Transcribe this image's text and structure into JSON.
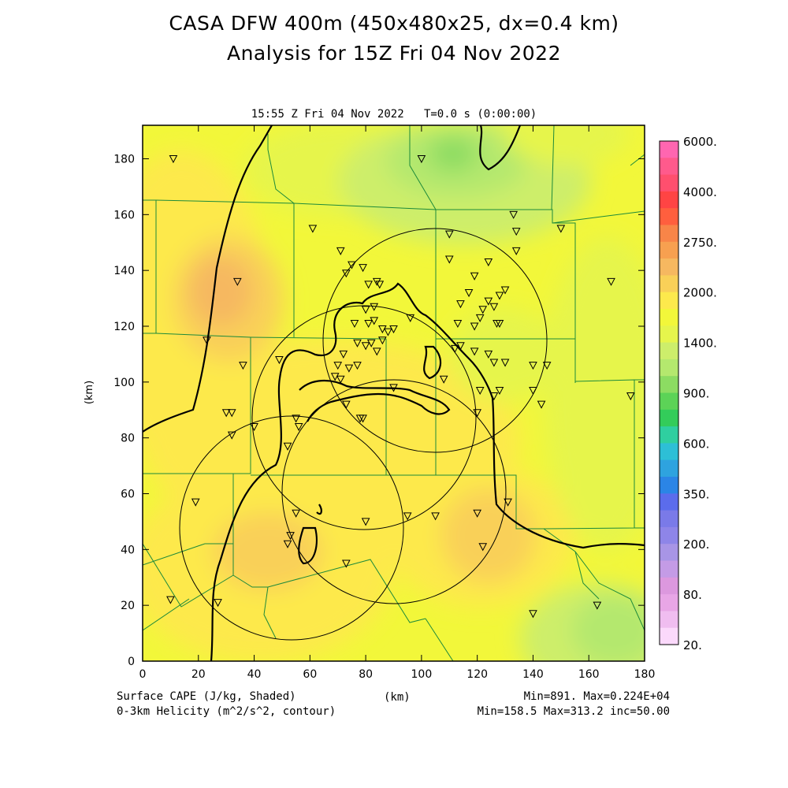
{
  "header": {
    "title_line1": "CASA DFW 400m (450x480x25, dx=0.4 km)",
    "title_line2": "Analysis for 15Z Fri 04 Nov 2022",
    "time_stamp": "15:55 Z Fri 04 Nov 2022",
    "time_offset": "T=0.0 s (0:00:00)"
  },
  "axes": {
    "x_label": "(km)",
    "y_label": "(km)",
    "x_ticks": [
      "0",
      "20",
      "40",
      "60",
      "80",
      "100",
      "120",
      "140",
      "160",
      "180"
    ],
    "y_ticks": [
      "0",
      "20",
      "40",
      "60",
      "80",
      "100",
      "120",
      "140",
      "160",
      "180"
    ],
    "x_range": [
      0,
      180
    ],
    "y_range": [
      0,
      192
    ]
  },
  "colorbar": {
    "labels": [
      "6000.",
      "4000.",
      "2750.",
      "2000.",
      "1400.",
      "900.",
      "600.",
      "350.",
      "200.",
      "80.",
      "20."
    ],
    "colors_top_to_bottom": [
      "#ff66b0",
      "#ff5a8c",
      "#ff4f6e",
      "#ff4444",
      "#ff5f3e",
      "#f88548",
      "#f7a050",
      "#f6b860",
      "#f9d058",
      "#fde94c",
      "#f2f73a",
      "#e6f54c",
      "#cdee6b",
      "#b4e86e",
      "#8cdc62",
      "#5cd357",
      "#33cc5a",
      "#2fcfa0",
      "#2dbfd6",
      "#2ea3df",
      "#2b85e6",
      "#5b6cec",
      "#7a7ae8",
      "#8e85e8",
      "#a895e6",
      "#c49be6",
      "#dc98de",
      "#e8a6e6",
      "#f0bdf0",
      "#fbd9fb"
    ]
  },
  "map_colors": {
    "yellow": "#f2f73a",
    "light_yellow": "#fde94c",
    "gold": "#f9d058",
    "orange": "#f6b860",
    "light_green": "#e6f54c",
    "green1": "#cdee6b",
    "green2": "#b4e86e",
    "green3": "#8cdc62",
    "county_lines": "#1d8a3a"
  },
  "station_markers": [
    [
      11,
      180
    ],
    [
      34,
      136
    ],
    [
      23,
      115
    ],
    [
      36,
      106
    ],
    [
      49,
      108
    ],
    [
      30,
      89
    ],
    [
      32,
      89
    ],
    [
      32,
      81
    ],
    [
      40,
      84
    ],
    [
      55,
      87
    ],
    [
      56,
      84
    ],
    [
      52,
      77
    ],
    [
      61,
      155
    ],
    [
      71,
      147
    ],
    [
      75,
      142
    ],
    [
      79,
      141
    ],
    [
      73,
      139
    ],
    [
      81,
      135
    ],
    [
      84,
      136
    ],
    [
      85,
      135
    ],
    [
      83,
      127
    ],
    [
      80,
      126
    ],
    [
      76,
      121
    ],
    [
      81,
      121
    ],
    [
      83,
      122
    ],
    [
      86,
      119
    ],
    [
      82,
      114
    ],
    [
      84,
      111
    ],
    [
      77,
      114
    ],
    [
      80,
      113
    ],
    [
      86,
      115
    ],
    [
      88,
      118
    ],
    [
      90,
      119
    ],
    [
      72,
      110
    ],
    [
      70,
      106
    ],
    [
      74,
      105
    ],
    [
      69,
      102
    ],
    [
      77,
      106
    ],
    [
      71,
      101
    ],
    [
      73,
      92
    ],
    [
      78,
      87
    ],
    [
      79,
      87
    ],
    [
      90,
      98
    ],
    [
      96,
      123
    ],
    [
      110,
      153
    ],
    [
      124,
      143
    ],
    [
      119,
      138
    ],
    [
      117,
      132
    ],
    [
      124,
      129
    ],
    [
      128,
      131
    ],
    [
      126,
      127
    ],
    [
      130,
      133
    ],
    [
      113,
      121
    ],
    [
      122,
      126
    ],
    [
      114,
      128
    ],
    [
      119,
      120
    ],
    [
      121,
      123
    ],
    [
      127,
      121
    ],
    [
      128,
      121
    ],
    [
      119,
      111
    ],
    [
      124,
      110
    ],
    [
      126,
      107
    ],
    [
      130,
      107
    ],
    [
      112,
      112
    ],
    [
      114,
      113
    ],
    [
      140,
      106
    ],
    [
      145,
      106
    ],
    [
      133,
      160
    ],
    [
      134,
      154
    ],
    [
      134,
      147
    ],
    [
      121,
      97
    ],
    [
      126,
      95
    ],
    [
      128,
      97
    ],
    [
      140,
      97
    ],
    [
      143,
      92
    ],
    [
      120,
      89
    ],
    [
      108,
      101
    ],
    [
      100,
      180
    ],
    [
      110,
      144
    ],
    [
      150,
      155
    ],
    [
      168,
      136
    ],
    [
      175,
      95
    ],
    [
      19,
      57
    ],
    [
      55,
      53
    ],
    [
      80,
      50
    ],
    [
      95,
      52
    ],
    [
      105,
      52
    ],
    [
      120,
      53
    ],
    [
      131,
      57
    ],
    [
      122,
      41
    ],
    [
      52,
      42
    ],
    [
      53,
      45
    ],
    [
      73,
      35
    ],
    [
      10,
      22
    ],
    [
      27,
      21
    ],
    [
      140,
      17
    ],
    [
      163,
      20
    ]
  ],
  "footer": {
    "left_line1": "Surface CAPE (J/kg, Shaded)",
    "left_line2": "0-3km Helicity (m^2/s^2, contour)",
    "center_label": "(km)",
    "right_line1": "Min=891. Max=0.224E+04",
    "right_line2": "Min=158.5 Max=313.2 inc=50.00"
  }
}
